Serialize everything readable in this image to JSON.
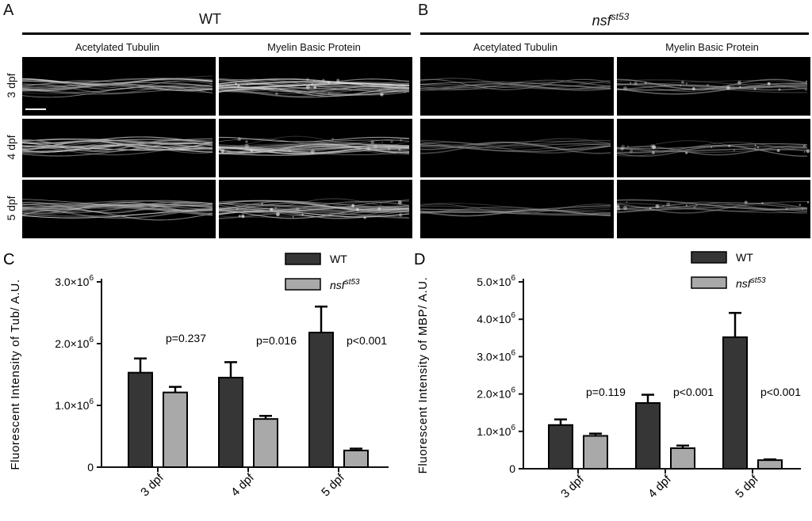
{
  "panels": {
    "A": "A",
    "B": "B",
    "C": "C",
    "D": "D"
  },
  "groups": {
    "wt": {
      "title": "WT"
    },
    "mutant": {
      "title_base": "nsf",
      "title_sup": "st53"
    }
  },
  "stains": {
    "tubulin": "Acetylated Tubulin",
    "mbp": "Myelin Basic Protein"
  },
  "rows": [
    "3 dpf",
    "4 dpf",
    "5 dpf"
  ],
  "colors": {
    "wt_bar": "#363636",
    "mutant_bar": "#a9a9a9",
    "axis": "#111111"
  },
  "chart_data": [
    {
      "type": "bar",
      "panel": "C",
      "categories": [
        "3 dpf",
        "4 dpf",
        "5 dpf"
      ],
      "series": [
        {
          "name": "WT",
          "values": [
            1530000,
            1450000,
            2180000
          ],
          "errors": [
            230000,
            250000,
            420000
          ]
        },
        {
          "name_base": "nsf",
          "name_sup": "st53",
          "values": [
            1210000,
            780000,
            270000
          ],
          "errors": [
            90000,
            50000,
            30000
          ]
        }
      ],
      "pvalues": [
        "p=0.237",
        "p=0.016",
        "p<0.001"
      ],
      "ylabel": "Fluorescent Intensity of Tub/ A.U.",
      "ylim": [
        0,
        3000000
      ],
      "yticks": [
        0,
        1000000,
        2000000,
        3000000
      ],
      "ytick_labels": [
        "0",
        "1.0×10",
        "2.0×10",
        "3.0×10"
      ],
      "ytick_exp": "6",
      "legend": "top-right"
    },
    {
      "type": "bar",
      "panel": "D",
      "categories": [
        "3 dpf",
        "4 dpf",
        "5 dpf"
      ],
      "series": [
        {
          "name": "WT",
          "values": [
            1170000,
            1760000,
            3520000
          ],
          "errors": [
            150000,
            220000,
            650000
          ]
        },
        {
          "name_base": "nsf",
          "name_sup": "st53",
          "values": [
            880000,
            550000,
            230000
          ],
          "errors": [
            60000,
            70000,
            20000
          ]
        }
      ],
      "pvalues": [
        "p=0.119",
        "p<0.001",
        "p<0.001"
      ],
      "ylabel": "Fluorescent Intensity of MBP/ A.U.",
      "ylim": [
        0,
        5000000
      ],
      "yticks": [
        0,
        1000000,
        2000000,
        3000000,
        4000000,
        5000000
      ],
      "ytick_labels": [
        "0",
        "1.0×10",
        "2.0×10",
        "3.0×10",
        "4.0×10",
        "5.0×10"
      ],
      "ytick_exp": "6",
      "legend": "top-right"
    }
  ]
}
